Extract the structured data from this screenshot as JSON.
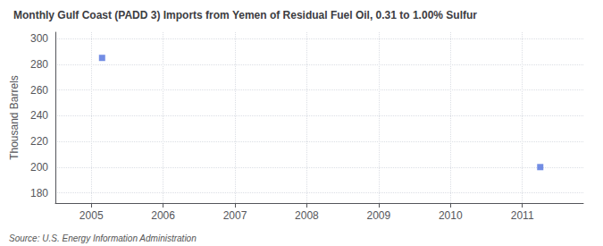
{
  "chart_data": {
    "type": "scatter",
    "title": "Monthly Gulf Coast (PADD 3) Imports from Yemen of Residual Fuel Oil, 0.31 to 1.00% Sulfur",
    "ylabel": "Thousand Barrels",
    "annotations": [
      "Source: U.S. Energy Information Administration"
    ],
    "x": [
      2005.15,
      2011.25
    ],
    "values": [
      285,
      200
    ],
    "marker": "square",
    "xlim": [
      2004.5,
      2011.85
    ],
    "ylim": [
      172,
      305
    ],
    "xticks": [
      2005,
      2006,
      2007,
      2008,
      2009,
      2010,
      2011
    ],
    "yticks": [
      180,
      200,
      220,
      240,
      260,
      280,
      300
    ],
    "grid": true
  }
}
